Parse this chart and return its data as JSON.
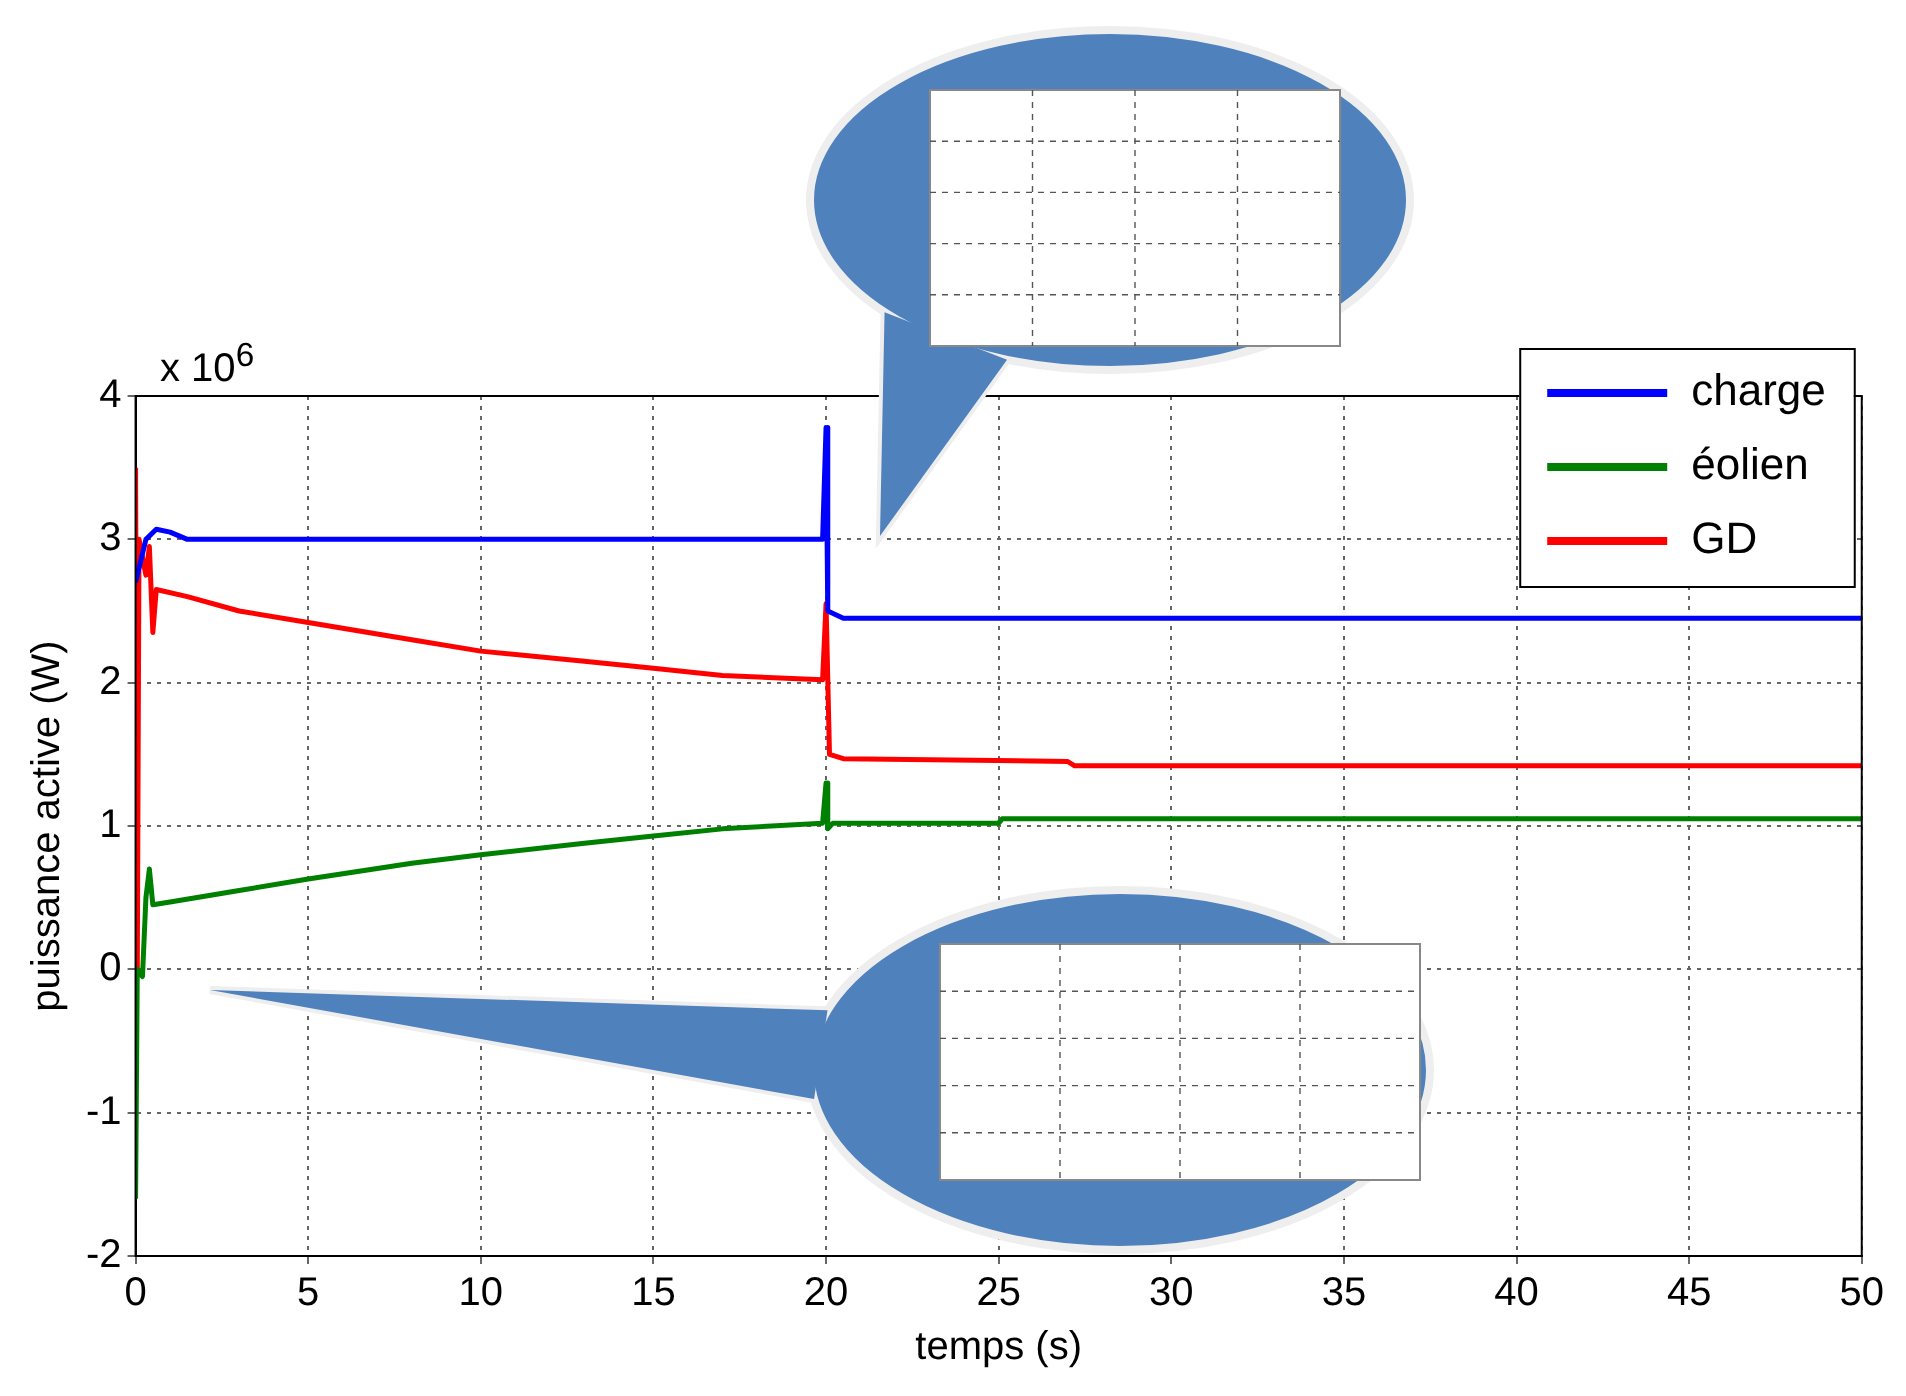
{
  "chart_data": {
    "type": "line",
    "xlabel": "temps (s)",
    "ylabel": "puissance active (W)",
    "annotations": [
      "x 10$^{6}$"
    ],
    "xlim": [
      0,
      50
    ],
    "xticks": [
      0,
      5,
      10,
      15,
      20,
      25,
      30,
      35,
      40,
      45,
      50
    ],
    "ylim": [
      -2,
      4
    ],
    "yticks": [
      -2,
      -1,
      0,
      1,
      2,
      3,
      4
    ],
    "grid": true,
    "legend": "top right",
    "marker": "none",
    "line_style": "solid",
    "series": [
      {
        "name": "charge",
        "color": "#0000ff",
        "x": [
          0,
          0.3,
          0.6,
          1,
          1.5,
          19.9,
          20,
          20.05,
          20.5,
          50
        ],
        "values": [
          2.7,
          3.0,
          3.07,
          3.05,
          3.0,
          3.0,
          3.78,
          2.5,
          2.45,
          2.45
        ]
      },
      {
        "name": "éolien",
        "color": "#008000",
        "x": [
          0,
          0.05,
          0.2,
          0.3,
          0.4,
          0.5,
          1,
          3,
          5,
          8,
          10,
          13,
          15,
          17,
          19.9,
          20,
          20.05,
          20.2,
          25,
          25.1,
          50
        ],
        "values": [
          -1.6,
          0,
          -0.05,
          0.5,
          0.7,
          0.45,
          0.47,
          0.55,
          0.63,
          0.74,
          0.8,
          0.88,
          0.93,
          0.98,
          1.02,
          1.3,
          0.98,
          1.02,
          1.02,
          1.05,
          1.05
        ]
      },
      {
        "name": "GD",
        "color": "#ff0000",
        "x": [
          0,
          0.05,
          0.1,
          0.3,
          0.4,
          0.5,
          0.6,
          1.5,
          3,
          5,
          8,
          10,
          13,
          15,
          17,
          19.9,
          20,
          20.1,
          20.5,
          27,
          27.2,
          50
        ],
        "values": [
          3.5,
          0,
          3.0,
          2.75,
          2.95,
          2.35,
          2.65,
          2.6,
          2.5,
          2.42,
          2.3,
          2.22,
          2.15,
          2.1,
          2.05,
          2.02,
          2.55,
          1.5,
          1.47,
          1.45,
          1.42,
          1.42
        ]
      }
    ]
  }
}
